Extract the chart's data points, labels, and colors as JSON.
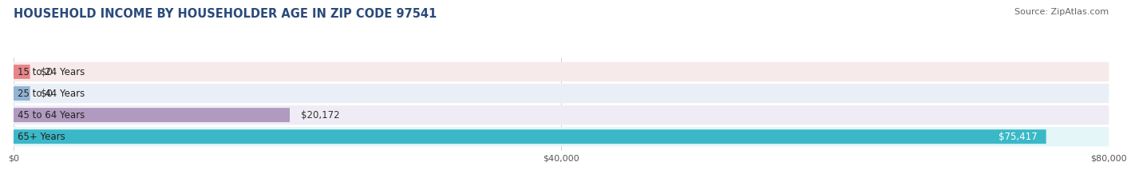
{
  "title": "HOUSEHOLD INCOME BY HOUSEHOLDER AGE IN ZIP CODE 97541",
  "source": "Source: ZipAtlas.com",
  "categories": [
    "15 to 24 Years",
    "25 to 44 Years",
    "45 to 64 Years",
    "65+ Years"
  ],
  "values": [
    0,
    0,
    20172,
    75417
  ],
  "bar_colors": [
    "#e8858a",
    "#92b4d4",
    "#b09abf",
    "#3ab8c8"
  ],
  "value_labels": [
    "$0",
    "$0",
    "$20,172",
    "$75,417"
  ],
  "xlim": [
    0,
    80000
  ],
  "xticks": [
    0,
    40000,
    80000
  ],
  "xtick_labels": [
    "$0",
    "$40,000",
    "$80,000"
  ],
  "title_fontsize": 10.5,
  "source_fontsize": 8,
  "label_fontsize": 8.5,
  "value_fontsize": 8.5,
  "background_color": "#ffffff",
  "row_bg_colors": [
    "#f7eaeb",
    "#eaeff7",
    "#f0ecf5",
    "#e4f6f8"
  ]
}
